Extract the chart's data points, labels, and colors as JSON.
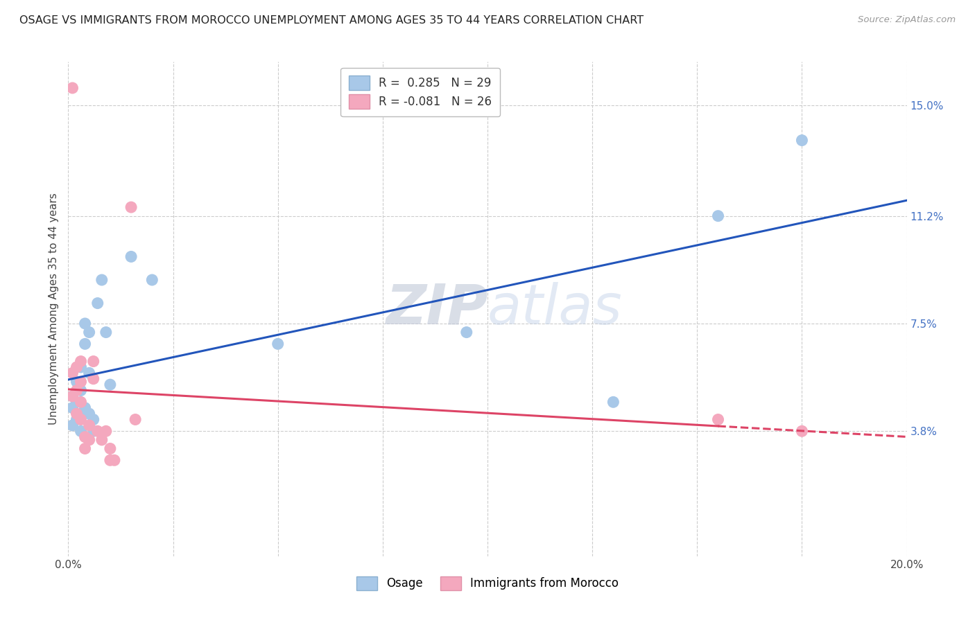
{
  "title": "OSAGE VS IMMIGRANTS FROM MOROCCO UNEMPLOYMENT AMONG AGES 35 TO 44 YEARS CORRELATION CHART",
  "source": "Source: ZipAtlas.com",
  "ylabel": "Unemployment Among Ages 35 to 44 years",
  "xlim": [
    0.0,
    0.2
  ],
  "ylim": [
    -0.005,
    0.165
  ],
  "yticks": [
    0.038,
    0.075,
    0.112,
    0.15
  ],
  "ytick_labels": [
    "3.8%",
    "7.5%",
    "11.2%",
    "15.0%"
  ],
  "xticks": [
    0.0,
    0.025,
    0.05,
    0.075,
    0.1,
    0.125,
    0.15,
    0.175,
    0.2
  ],
  "osage_color": "#a8c8e8",
  "morocco_color": "#f4a8be",
  "osage_line_color": "#2255bb",
  "morocco_line_color": "#dd4466",
  "legend_R_osage": "0.285",
  "legend_N_osage": "29",
  "legend_R_morocco": "-0.081",
  "legend_N_morocco": "26",
  "osage_x": [
    0.001,
    0.001,
    0.001,
    0.002,
    0.002,
    0.002,
    0.003,
    0.003,
    0.003,
    0.003,
    0.004,
    0.004,
    0.004,
    0.005,
    0.005,
    0.005,
    0.006,
    0.006,
    0.007,
    0.008,
    0.009,
    0.01,
    0.015,
    0.02,
    0.05,
    0.095,
    0.13,
    0.155,
    0.175
  ],
  "osage_y": [
    0.05,
    0.046,
    0.04,
    0.055,
    0.048,
    0.042,
    0.06,
    0.052,
    0.044,
    0.038,
    0.075,
    0.068,
    0.046,
    0.072,
    0.058,
    0.044,
    0.042,
    0.038,
    0.082,
    0.09,
    0.072,
    0.054,
    0.098,
    0.09,
    0.068,
    0.072,
    0.048,
    0.112,
    0.138
  ],
  "morocco_x": [
    0.001,
    0.001,
    0.001,
    0.002,
    0.002,
    0.002,
    0.003,
    0.003,
    0.003,
    0.003,
    0.004,
    0.004,
    0.005,
    0.005,
    0.006,
    0.006,
    0.007,
    0.008,
    0.009,
    0.01,
    0.01,
    0.011,
    0.015,
    0.016,
    0.155,
    0.175
  ],
  "morocco_y": [
    0.156,
    0.058,
    0.05,
    0.06,
    0.052,
    0.044,
    0.062,
    0.055,
    0.048,
    0.042,
    0.036,
    0.032,
    0.04,
    0.035,
    0.062,
    0.056,
    0.038,
    0.035,
    0.038,
    0.032,
    0.028,
    0.028,
    0.115,
    0.042,
    0.042,
    0.038
  ],
  "watermark_zip": "ZIP",
  "watermark_atlas": "atlas",
  "background_color": "#ffffff",
  "grid_color": "#cccccc"
}
